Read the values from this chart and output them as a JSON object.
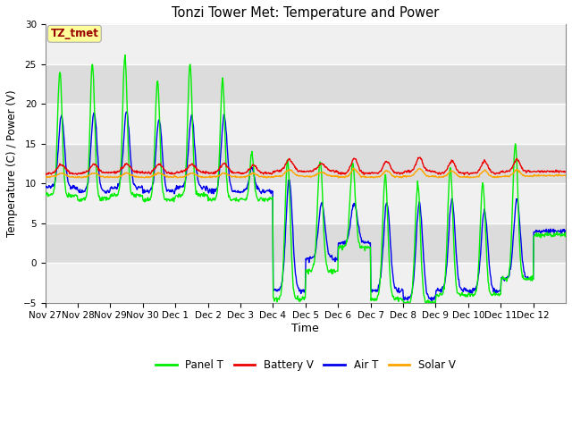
{
  "title": "Tonzi Tower Met: Temperature and Power",
  "xlabel": "Time",
  "ylabel": "Temperature (C) / Power (V)",
  "ylim": [
    -5,
    30
  ],
  "yticks": [
    -5,
    0,
    5,
    10,
    15,
    20,
    25,
    30
  ],
  "x_labels": [
    "Nov 27",
    "Nov 28",
    "Nov 29",
    "Nov 30",
    "Dec 1",
    "Dec 2",
    "Dec 3",
    "Dec 4",
    "Dec 5",
    "Dec 6",
    "Dec 7",
    "Dec 8",
    "Dec 9",
    "Dec 10",
    "Dec 11",
    "Dec 12"
  ],
  "colors": {
    "panel_t": "#00EE00",
    "battery_v": "#EE0000",
    "air_t": "#0000EE",
    "solar_v": "#FFA500"
  },
  "bg_outer": "#DCDCDC",
  "bg_inner_light": "#F0F0F0",
  "bg_inner_dark": "#DCDCDC",
  "annotation_text": "TZ_tmet",
  "annotation_color": "#990000",
  "annotation_bg": "#FFFF99",
  "legend_labels": [
    "Panel T",
    "Battery V",
    "Air T",
    "Solar V"
  ]
}
